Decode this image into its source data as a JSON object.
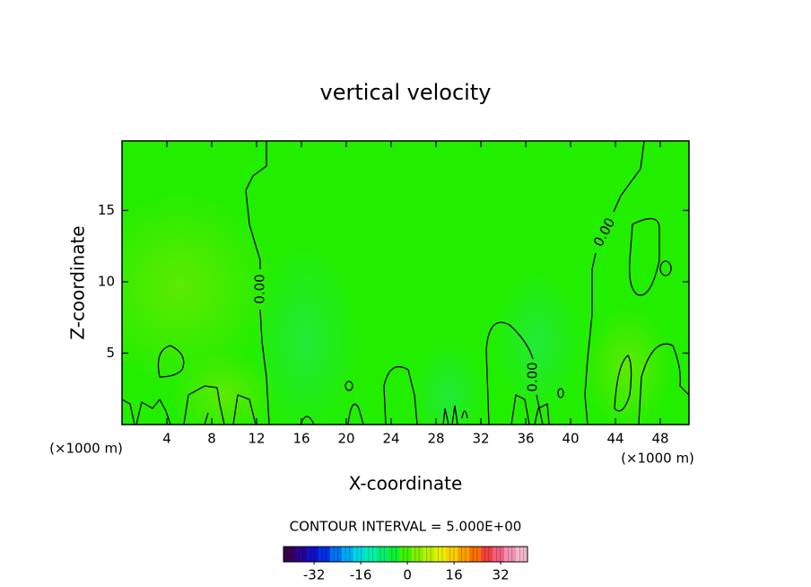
{
  "chart_data": {
    "type": "contour",
    "title": "vertical velocity",
    "x_label": "X-coordinate",
    "y_label": "Z-coordinate",
    "x_unit_labels": [
      "(×1000 m)",
      "(×1000 m)"
    ],
    "field_color": "#22ee00",
    "contour_color": "#000000",
    "contour_labels": [
      "0.00",
      "0.00",
      "0.00"
    ],
    "xlim": [
      0,
      50.56
    ],
    "xticks": [
      4,
      8,
      12,
      16,
      20,
      24,
      28,
      32,
      36,
      40,
      44,
      48
    ],
    "ylim": [
      0,
      19.87
    ],
    "yticks": [
      5,
      10,
      15
    ],
    "colorbar": {
      "title": "CONTOUR INTERVAL = 5.000E+00",
      "lim": [
        -42.5,
        41.2
      ],
      "ticks": [
        -32,
        -16,
        0,
        16,
        32
      ],
      "colors": [
        "#3a0050",
        "#2a0090",
        "#1010c0",
        "#0030e0",
        "#0070f0",
        "#00a8f0",
        "#00d8e0",
        "#00f0b0",
        "#00f070",
        "#10f030",
        "#40f000",
        "#80f000",
        "#b8f000",
        "#e8f000",
        "#f8d000",
        "#f8a000",
        "#f87000",
        "#f04040",
        "#f06080",
        "#f090b0",
        "#f0b8c8"
      ]
    }
  }
}
